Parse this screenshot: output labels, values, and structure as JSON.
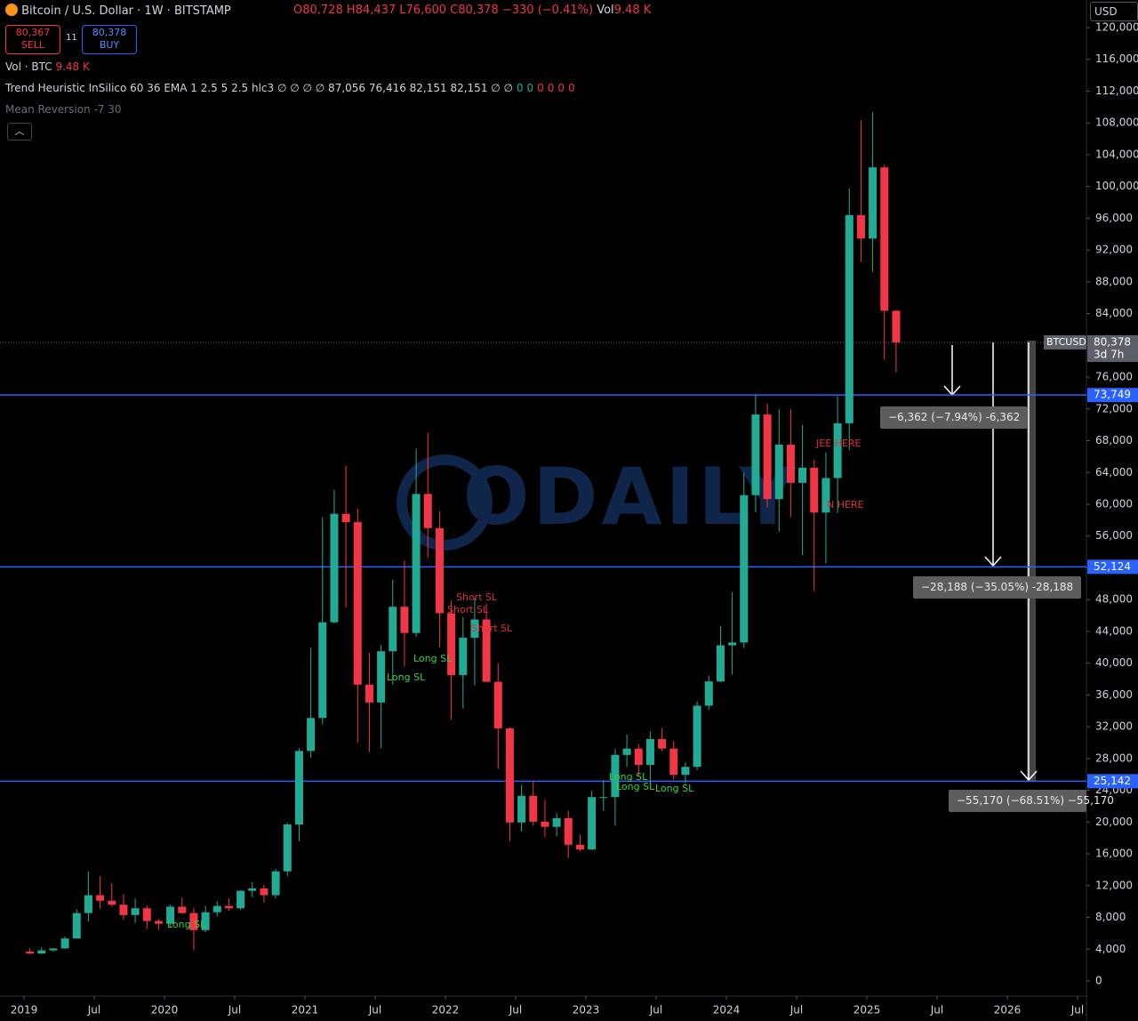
{
  "chart_data": {
    "type": "candlestick",
    "title": "Bitcoin / U.S. Dollar · 1W · BITSTAMP",
    "ohlc_header": {
      "open": "O80,728",
      "high": "H84,437",
      "low": "L76,600",
      "close": "C80,378",
      "change": "−330 (−0.41%)",
      "vol_label": "Vol",
      "vol": "9.48 K"
    },
    "sell": {
      "price": "80,367",
      "label": "SELL"
    },
    "spread": "11",
    "buy": {
      "price": "80,378",
      "label": "BUY"
    },
    "volume_indicator": {
      "name": "Vol · BTC",
      "value": "9.48 K"
    },
    "indicator_1": {
      "name": "Trend Heuristic InSilico 60 36 EMA 1 2.5 5 2.5 hlc3",
      "values": "∅ ∅ ∅ ∅ 87,056 76,416 82,151 82,151 ∅ ∅",
      "flags": [
        "0",
        "0",
        "0",
        "0",
        "0",
        "0"
      ]
    },
    "indicator_2": {
      "name": "Mean Reversion -7 30"
    },
    "currency": "USD",
    "watermark": "ODAILY",
    "up_color": "#22ab94",
    "down_color": "#f23645",
    "x": [
      "2019-01",
      "2019-02",
      "2019-03",
      "2019-04",
      "2019-05",
      "2019-06",
      "2019-07",
      "2019-08",
      "2019-09",
      "2019-10",
      "2019-11",
      "2019-12",
      "2020-01",
      "2020-02",
      "2020-03",
      "2020-04",
      "2020-05",
      "2020-06",
      "2020-07",
      "2020-08",
      "2020-09",
      "2020-10",
      "2020-11",
      "2020-12",
      "2021-01",
      "2021-02",
      "2021-03",
      "2021-04",
      "2021-05",
      "2021-06",
      "2021-07",
      "2021-08",
      "2021-09",
      "2021-10",
      "2021-11",
      "2021-12",
      "2022-01",
      "2022-02",
      "2022-03",
      "2022-04",
      "2022-05",
      "2022-06",
      "2022-07",
      "2022-08",
      "2022-09",
      "2022-10",
      "2022-11",
      "2022-12",
      "2023-01",
      "2023-02",
      "2023-03",
      "2023-04",
      "2023-05",
      "2023-06",
      "2023-07",
      "2023-08",
      "2023-09",
      "2023-10",
      "2023-11",
      "2023-12",
      "2024-01",
      "2024-02",
      "2024-03",
      "2024-04",
      "2024-05",
      "2024-06",
      "2024-07",
      "2024-08",
      "2024-09",
      "2024-10",
      "2024-11",
      "2024-12",
      "2025-01",
      "2025-02",
      "2025-03"
    ],
    "open": [
      3700,
      3450,
      3850,
      4100,
      5350,
      8550,
      10800,
      10100,
      9600,
      8300,
      9150,
      7550,
      7200,
      9350,
      8550,
      6400,
      8650,
      9450,
      9150,
      11350,
      11650,
      10800,
      13800,
      19700,
      28950,
      33100,
      45150,
      58800,
      57750,
      37300,
      35050,
      41500,
      47100,
      43800,
      61300,
      57000,
      46300,
      38500,
      43200,
      45500,
      37650,
      31800,
      19950,
      23300,
      20050,
      19400,
      20500,
      17150,
      16550,
      23150,
      23150,
      28450,
      29250,
      27200,
      30450,
      29250,
      25950,
      26950,
      34650,
      37700,
      42250,
      42600,
      61150,
      71300,
      60650,
      67500,
      62700,
      64600,
      58950,
      63300,
      70200,
      96400,
      93450,
      102400,
      84350
    ],
    "high": [
      4100,
      4200,
      4100,
      5600,
      9000,
      13800,
      13200,
      12300,
      10900,
      10400,
      9500,
      7750,
      9600,
      10500,
      9200,
      9450,
      10050,
      10400,
      11450,
      12450,
      12100,
      14100,
      19900,
      29300,
      41950,
      58350,
      61800,
      64850,
      59500,
      41300,
      42300,
      50500,
      52900,
      67000,
      69000,
      59100,
      47900,
      45800,
      48200,
      47450,
      40000,
      31950,
      24650,
      25200,
      22800,
      21100,
      21450,
      18400,
      23950,
      25250,
      29200,
      31000,
      29850,
      31400,
      31800,
      30200,
      27500,
      35200,
      38450,
      44700,
      48950,
      64000,
      73750,
      72700,
      71950,
      71950,
      70000,
      65600,
      66500,
      73600,
      99800,
      108350,
      109350,
      102750,
      84450
    ],
    "low": [
      3350,
      3400,
      3700,
      4050,
      5300,
      7500,
      9100,
      9350,
      7700,
      7300,
      6550,
      6430,
      6850,
      8450,
      3850,
      6150,
      8100,
      8850,
      8950,
      10550,
      9850,
      10400,
      13200,
      17600,
      28100,
      32300,
      45000,
      47000,
      30000,
      28800,
      29300,
      37300,
      39600,
      43300,
      53250,
      42000,
      32900,
      34300,
      37200,
      37700,
      26700,
      17600,
      18800,
      19550,
      18150,
      18200,
      15500,
      16300,
      16500,
      21400,
      19550,
      26950,
      25800,
      24800,
      28900,
      25350,
      24900,
      26550,
      34100,
      37600,
      38550,
      41900,
      59000,
      59600,
      56550,
      58400,
      53550,
      49050,
      52550,
      58900,
      66800,
      90500,
      89250,
      78200,
      76600
    ],
    "close": [
      3450,
      3850,
      4100,
      5350,
      8550,
      10800,
      10100,
      9600,
      8300,
      9150,
      7550,
      7200,
      9350,
      8550,
      6400,
      8650,
      9450,
      9150,
      11350,
      11650,
      10800,
      13800,
      19700,
      28950,
      33100,
      45150,
      58800,
      57750,
      37300,
      35050,
      41500,
      47100,
      43800,
      61300,
      57000,
      46300,
      38500,
      43200,
      45500,
      37650,
      31800,
      19950,
      23300,
      20050,
      19400,
      20500,
      17150,
      16550,
      23150,
      23150,
      28450,
      29250,
      27200,
      30450,
      29250,
      25950,
      26950,
      34650,
      37700,
      42250,
      42600,
      61150,
      71300,
      60650,
      67500,
      62700,
      64600,
      58950,
      63300,
      70200,
      96400,
      93450,
      102400,
      84350,
      80378
    ],
    "ylim": [
      0,
      120000
    ],
    "yticks": [
      0,
      {
        "value": 4000,
        "label": "4,000"
      },
      {
        "value": 8000,
        "label": "8,000"
      },
      {
        "value": 12000,
        "label": "12,000"
      },
      {
        "value": 16000,
        "label": "16,000"
      },
      {
        "value": 20000,
        "label": "20,000"
      },
      {
        "value": 24000,
        "label": "24,000"
      },
      {
        "value": 28000,
        "label": "28,000"
      },
      {
        "value": 32000,
        "label": "32,000"
      },
      {
        "value": 36000,
        "label": "36,000"
      },
      {
        "value": 40000,
        "label": "40,000"
      },
      {
        "value": 44000,
        "label": "44,000"
      },
      {
        "value": 48000,
        "label": "48,000"
      },
      {
        "value": 52000,
        "label": "52,000"
      },
      {
        "value": 56000,
        "label": "56,000"
      },
      {
        "value": 60000,
        "label": "60,000"
      },
      {
        "value": 64000,
        "label": "64,000"
      },
      {
        "value": 68000,
        "label": "68,000"
      },
      {
        "value": 72000,
        "label": "72,000"
      },
      {
        "value": 76000,
        "label": "76,000"
      },
      {
        "value": 80000,
        "label": "80,000"
      },
      {
        "value": 84000,
        "label": "84,000"
      },
      {
        "value": 88000,
        "label": "88,000"
      },
      {
        "value": 92000,
        "label": "92,000"
      },
      {
        "value": 96000,
        "label": "96,000"
      },
      {
        "value": 100000,
        "label": "100,000"
      },
      {
        "value": 104000,
        "label": "104,000"
      },
      {
        "value": 108000,
        "label": "108,000"
      },
      {
        "value": 112000,
        "label": "112,000"
      },
      {
        "value": 116000,
        "label": "116,000"
      },
      {
        "value": 120000,
        "label": "120,000"
      }
    ],
    "xticks": [
      {
        "value": "2019-01",
        "label": "2019"
      },
      {
        "value": "2019-07",
        "label": "Jul"
      },
      {
        "value": "2020-01",
        "label": "2020"
      },
      {
        "value": "2020-07",
        "label": "Jul"
      },
      {
        "value": "2021-01",
        "label": "2021"
      },
      {
        "value": "2021-07",
        "label": "Jul"
      },
      {
        "value": "2022-01",
        "label": "2022"
      },
      {
        "value": "2022-07",
        "label": "Jul"
      },
      {
        "value": "2023-01",
        "label": "2023"
      },
      {
        "value": "2023-07",
        "label": "Jul"
      },
      {
        "value": "2024-01",
        "label": "2024"
      },
      {
        "value": "2024-07",
        "label": "Jul"
      },
      {
        "value": "2025-01",
        "label": "2025"
      },
      {
        "value": "2025-07",
        "label": "Jul"
      },
      {
        "value": "2026-01",
        "label": "2026"
      },
      {
        "value": "2026-07",
        "label": "Jul"
      }
    ],
    "levels": [
      {
        "value": 73749,
        "label": "73,749"
      },
      {
        "value": 52124,
        "label": "52,124"
      },
      {
        "value": 25142,
        "label": "25,142"
      }
    ],
    "last_price": {
      "value": 80378,
      "label": "80,378"
    },
    "symbol_tag": "BTCUSD",
    "countdown": "3d 7h",
    "measurements": [
      "−6,362 (−7.94%) -6,362",
      "−28,188 (−35.05%) -28,188",
      "−55,170 (−68.51%) −55,170"
    ],
    "signals": [
      {
        "text": "Long SL",
        "kind": "long"
      },
      {
        "text": "Long SL",
        "kind": "long"
      },
      {
        "text": "Short SL",
        "kind": "short"
      },
      {
        "text": "Short SL",
        "kind": "short"
      },
      {
        "text": "Short SL",
        "kind": "short"
      },
      {
        "text": "Long SL",
        "kind": "long"
      },
      {
        "text": "Long SL",
        "kind": "long"
      },
      {
        "text": "Long SL",
        "kind": "long"
      },
      {
        "text": "Long SL",
        "kind": "long"
      },
      {
        "text": "JEE HERE",
        "kind": "short"
      },
      {
        "text": "N HERE",
        "kind": "short"
      }
    ]
  }
}
